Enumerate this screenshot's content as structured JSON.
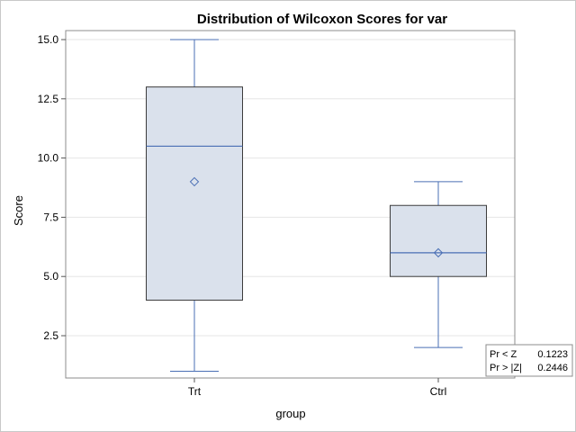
{
  "chart_data": {
    "type": "box",
    "title": "Distribution of Wilcoxon Scores for var",
    "xlabel": "group",
    "ylabel": "Score",
    "categories": [
      "Trt",
      "Ctrl"
    ],
    "ylim": [
      1,
      15
    ],
    "yticks": [
      2.5,
      5.0,
      7.5,
      10.0,
      12.5,
      15.0
    ],
    "ytick_labels": [
      "2.5",
      "5.0",
      "7.5",
      "10.0",
      "12.5",
      "15.0"
    ],
    "grid": "horizontal",
    "boxes": [
      {
        "category": "Trt",
        "min": 1,
        "q1": 4,
        "median": 10.5,
        "mean": 9,
        "q3": 13,
        "max": 15
      },
      {
        "category": "Ctrl",
        "min": 2,
        "q1": 5,
        "median": 6,
        "mean": 6,
        "q3": 8,
        "max": 9
      }
    ],
    "inset": {
      "placement": "bottom-right",
      "rows": [
        {
          "label": "Pr < Z",
          "value": "0.1223"
        },
        {
          "label": "Pr > |Z|",
          "value": "0.2446"
        }
      ]
    },
    "colors": {
      "box_fill": "#dae1ec",
      "box_edge": "#3c3c3c",
      "median_line": "#4a6fb5",
      "whisker": "#4a6fb5",
      "mean_marker": "#4a6fb5",
      "grid": "#e6e6e6",
      "frame": "#8c8c8c"
    }
  }
}
